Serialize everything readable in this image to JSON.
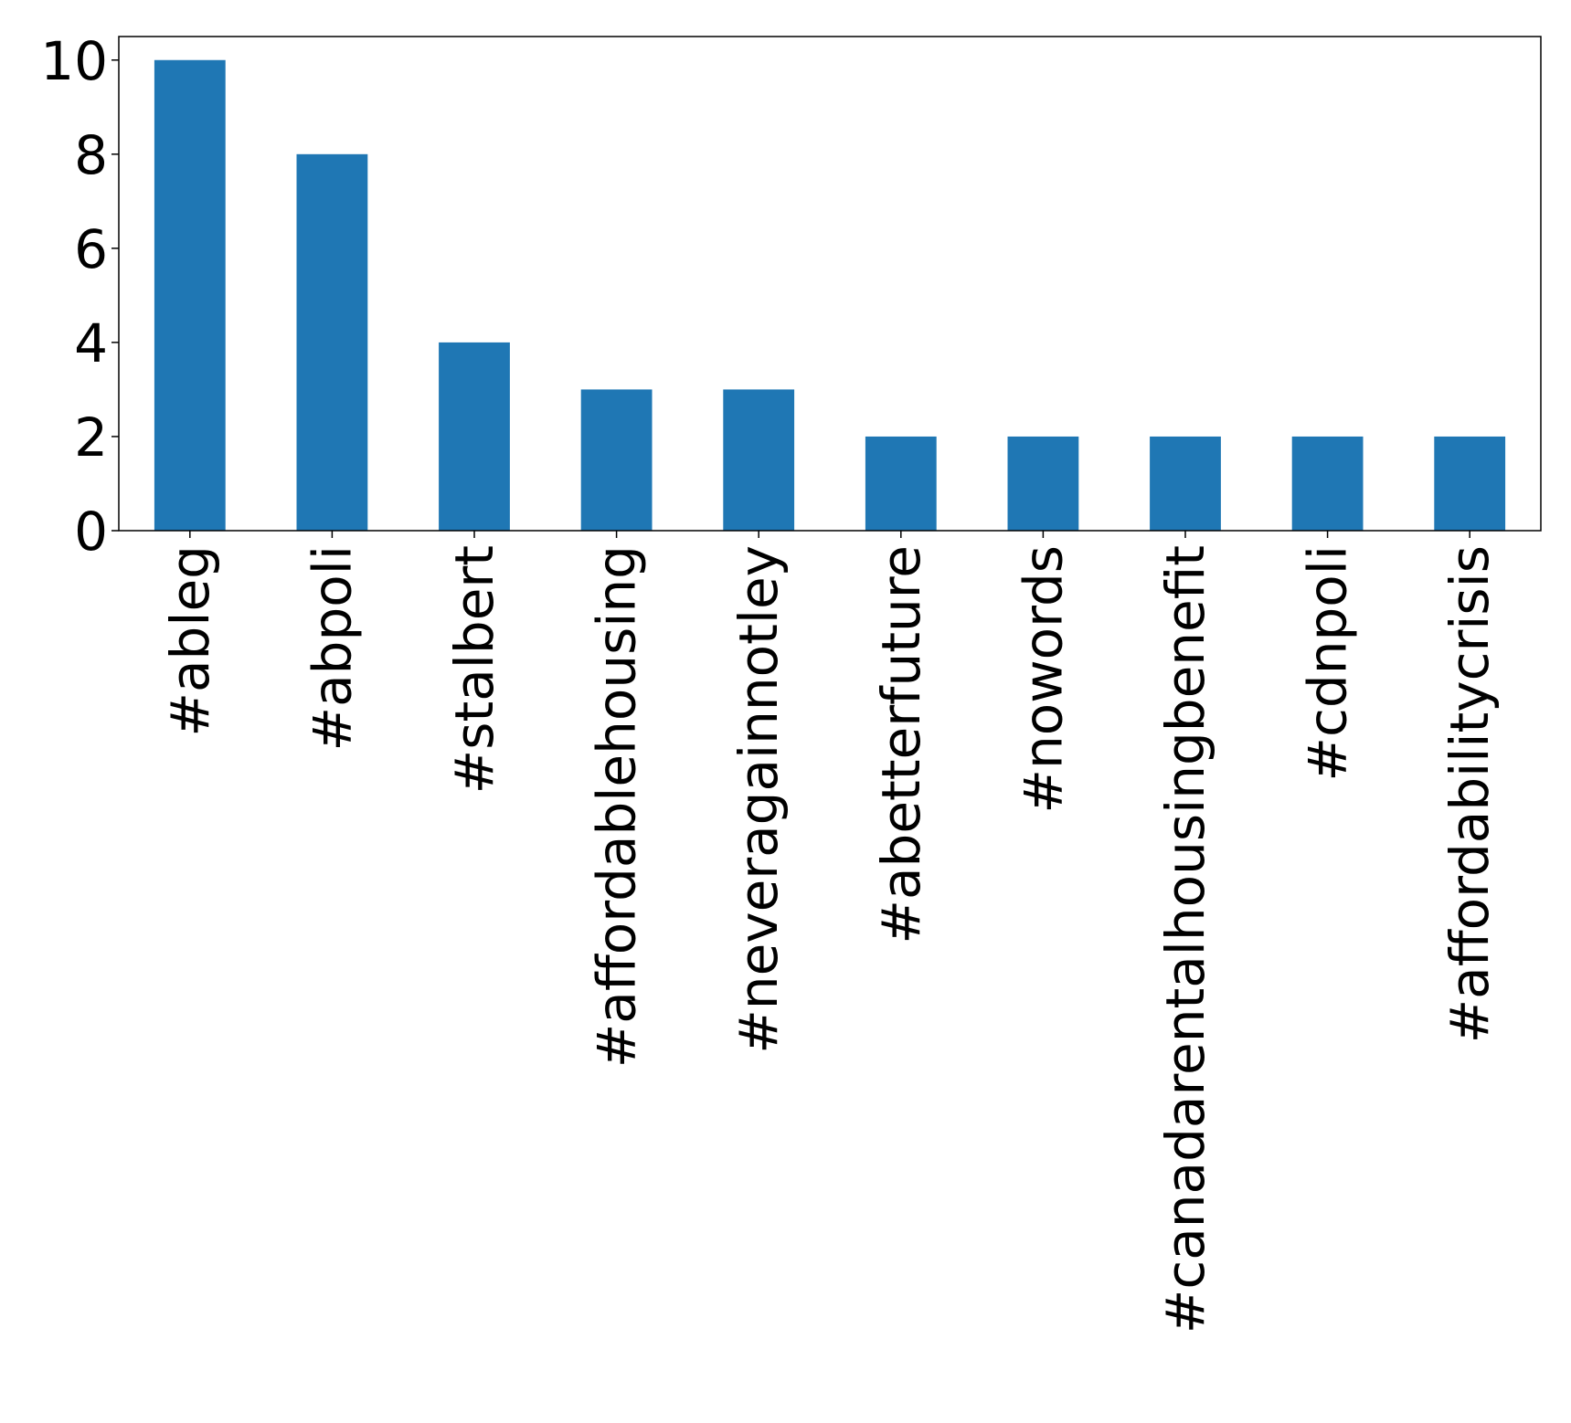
{
  "chart_data": {
    "type": "bar",
    "title": "",
    "xlabel": "",
    "ylabel": "",
    "categories": [
      "#ableg",
      "#abpoli",
      "#stalbert",
      "#affordablehousing",
      "#neveragainnotley",
      "#abetterfuture",
      "#nowords",
      "#canadarentalhousingbenefit",
      "#cdnpoli",
      "#affordabilitycrisis"
    ],
    "values": [
      10,
      8,
      4,
      3,
      3,
      2,
      2,
      2,
      2,
      2
    ],
    "ylim": [
      0,
      10.5
    ],
    "yticks": [
      0,
      2,
      4,
      6,
      8,
      10
    ],
    "bar_color": "#1f77b4",
    "grid": false,
    "legend": "none",
    "x_tick_rotation": "vertical"
  }
}
